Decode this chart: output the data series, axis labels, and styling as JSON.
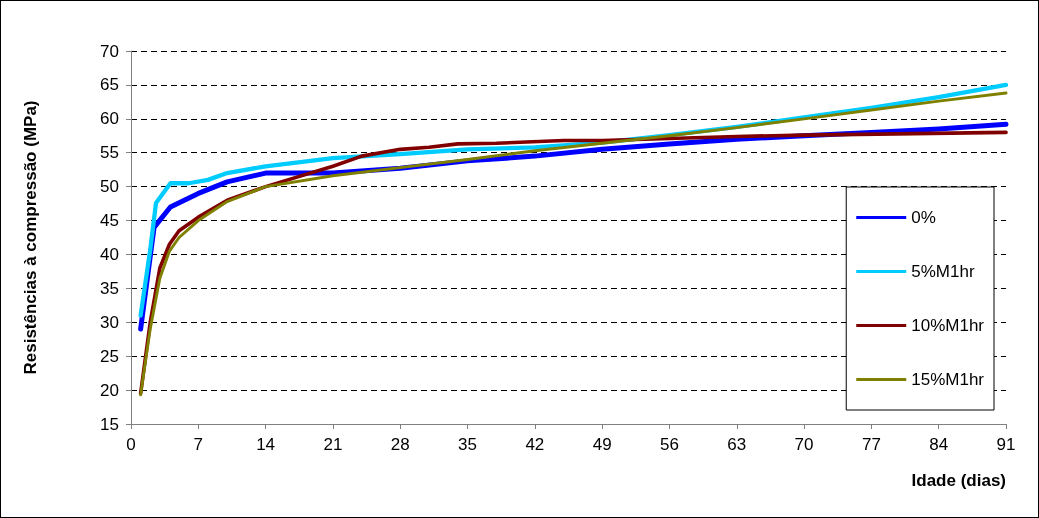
{
  "chart_data": {
    "type": "line",
    "xlabel": "Idade (dias)",
    "ylabel": "Resistências à compressão (MPa)",
    "xlim": [
      0,
      91
    ],
    "xticks": [
      0,
      7,
      14,
      21,
      28,
      35,
      42,
      49,
      56,
      63,
      70,
      77,
      84,
      91
    ],
    "ylim": [
      15,
      70
    ],
    "yticks": [
      15,
      20,
      25,
      30,
      35,
      40,
      45,
      50,
      55,
      60,
      65,
      70
    ],
    "grid": "y",
    "legend": "bottom right",
    "marker": "none",
    "line_style": "solid",
    "series": [
      {
        "name": "0%",
        "color": "#0000ff",
        "x": [
          1,
          2.4,
          4.1,
          7,
          10,
          14,
          21,
          28,
          35,
          42,
          49,
          56,
          63,
          70,
          77,
          84,
          91
        ],
        "values": [
          29,
          44,
          47,
          49,
          50.7,
          52,
          52,
          52.7,
          53.8,
          54.5,
          55.5,
          56.3,
          57,
          57.5,
          58,
          58.5,
          59.2
        ]
      },
      {
        "name": "5%M1hr",
        "color": "#00ccff",
        "x": [
          1,
          2,
          2.6,
          4.1,
          6,
          8,
          10,
          14,
          21,
          28,
          35,
          42,
          49,
          56,
          63,
          70,
          77,
          84,
          91
        ],
        "values": [
          31,
          40.7,
          47.6,
          50.5,
          50.5,
          51,
          52,
          53,
          54.2,
          54.8,
          55.5,
          55.8,
          56.5,
          57.6,
          58.8,
          60.2,
          61.6,
          63.2,
          65
        ]
      },
      {
        "name": "10%M1hr",
        "color": "#800000",
        "x": [
          1,
          2,
          3,
          4,
          5,
          7,
          10,
          14,
          21,
          24,
          28,
          31,
          34,
          38,
          45,
          49,
          56,
          63,
          70,
          91
        ],
        "values": [
          19.5,
          30,
          38,
          41.5,
          43.5,
          45.5,
          48,
          50,
          53,
          54.5,
          55.5,
          55.8,
          56.3,
          56.4,
          56.8,
          56.8,
          57.1,
          57.4,
          57.6,
          58
        ]
      },
      {
        "name": "15%M1hr",
        "color": "#808000",
        "x": [
          1,
          2,
          3,
          4,
          5,
          7,
          10,
          14,
          21,
          28,
          35,
          42,
          49,
          56,
          63,
          70,
          77,
          84,
          91
        ],
        "values": [
          19.3,
          29,
          36.5,
          40.5,
          42.5,
          45,
          47.8,
          50,
          51.6,
          52.8,
          54,
          55.3,
          56.4,
          57.5,
          58.7,
          60,
          61.3,
          62.6,
          63.8
        ]
      }
    ]
  }
}
